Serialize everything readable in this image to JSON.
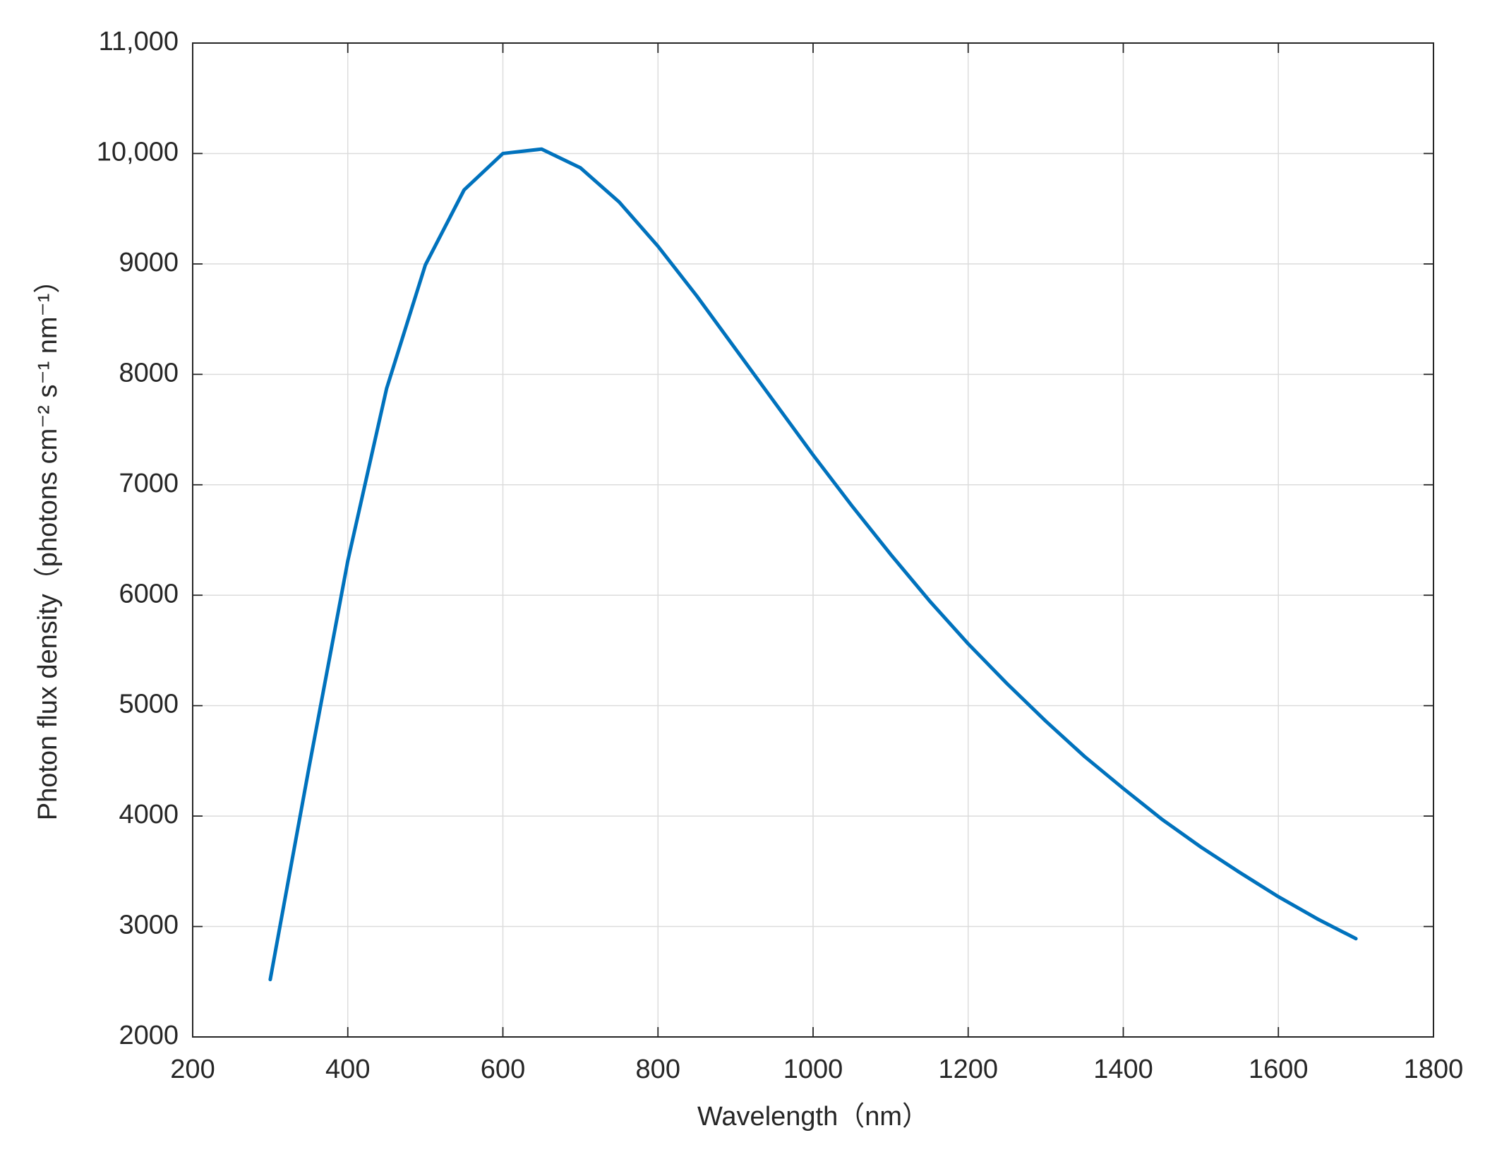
{
  "chart_data": {
    "type": "line",
    "x_label": "Wavelength（nm）",
    "y_label": "Photon flux density（photons cm⁻² s⁻¹ nm⁻¹）",
    "x": [
      300,
      350,
      400,
      450,
      500,
      550,
      600,
      650,
      700,
      750,
      800,
      850,
      900,
      950,
      1000,
      1050,
      1100,
      1150,
      1200,
      1250,
      1300,
      1350,
      1400,
      1450,
      1500,
      1550,
      1600,
      1650,
      1700
    ],
    "values": [
      2520,
      4440,
      6310,
      7870,
      8990,
      9670,
      10000,
      10040,
      9870,
      9560,
      9160,
      8710,
      8230,
      7750,
      7270,
      6810,
      6370,
      5950,
      5560,
      5200,
      4860,
      4540,
      4250,
      3970,
      3720,
      3490,
      3270,
      3070,
      2890
    ],
    "color": "#0072bd",
    "xlim": [
      200,
      1800
    ],
    "xticks": [
      200,
      400,
      600,
      800,
      1000,
      1200,
      1400,
      1600,
      1800
    ],
    "ylim": [
      2000,
      11000
    ],
    "yticks": [
      2000,
      3000,
      4000,
      5000,
      6000,
      7000,
      8000,
      9000,
      {
        "value": 10000,
        "label": "10,000"
      },
      {
        "value": 11000,
        "label": "11,000"
      }
    ],
    "grid": true
  }
}
